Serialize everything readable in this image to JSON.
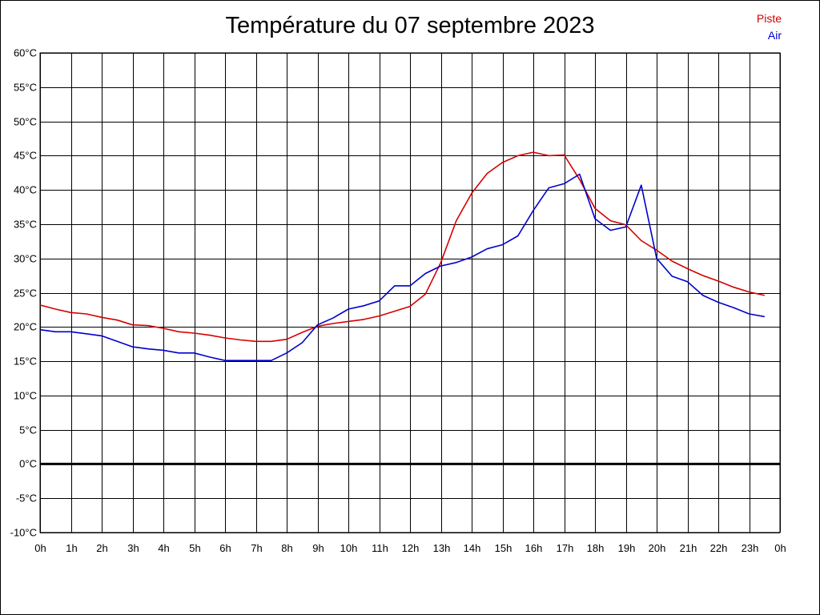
{
  "chart_data": {
    "type": "line",
    "title": "Température du 07 septembre 2023",
    "x_unit": "hour",
    "x_range": [
      0,
      24
    ],
    "x_ticks": [
      "0h",
      "1h",
      "2h",
      "3h",
      "4h",
      "5h",
      "6h",
      "7h",
      "8h",
      "9h",
      "10h",
      "11h",
      "12h",
      "13h",
      "14h",
      "15h",
      "16h",
      "17h",
      "18h",
      "19h",
      "20h",
      "21h",
      "22h",
      "23h",
      "0h"
    ],
    "y_range": [
      -10,
      60
    ],
    "y_ticks": [
      "60°C",
      "55°C",
      "50°C",
      "45°C",
      "40°C",
      "35°C",
      "30°C",
      "25°C",
      "20°C",
      "15°C",
      "10°C",
      "5°C",
      "0°C",
      "-5°C",
      "-10°C"
    ],
    "grid": true,
    "zero_line": true,
    "legend_position": "top-right",
    "series": [
      {
        "name": "Piste",
        "color": "#d40000",
        "points": [
          [
            0,
            23.2
          ],
          [
            0.5,
            22.6
          ],
          [
            1,
            22.1
          ],
          [
            1.5,
            21.9
          ],
          [
            2,
            21.4
          ],
          [
            2.5,
            21.0
          ],
          [
            3,
            20.3
          ],
          [
            3.5,
            20.2
          ],
          [
            4,
            19.8
          ],
          [
            4.5,
            19.3
          ],
          [
            5,
            19.1
          ],
          [
            5.5,
            18.8
          ],
          [
            6,
            18.4
          ],
          [
            6.5,
            18.1
          ],
          [
            7,
            17.9
          ],
          [
            7.5,
            17.9
          ],
          [
            8,
            18.2
          ],
          [
            8.5,
            19.2
          ],
          [
            9,
            20.1
          ],
          [
            9.5,
            20.5
          ],
          [
            10,
            20.8
          ],
          [
            10.5,
            21.1
          ],
          [
            11,
            21.6
          ],
          [
            11.5,
            22.3
          ],
          [
            12,
            23.0
          ],
          [
            12.5,
            24.8
          ],
          [
            13,
            29.4
          ],
          [
            13.5,
            35.5
          ],
          [
            14,
            39.5
          ],
          [
            14.5,
            42.4
          ],
          [
            15,
            44.0
          ],
          [
            15.5,
            45.0
          ],
          [
            16,
            45.5
          ],
          [
            16.5,
            45.0
          ],
          [
            17,
            45.1
          ],
          [
            17.5,
            41.5
          ],
          [
            18,
            37.3
          ],
          [
            18.5,
            35.5
          ],
          [
            19,
            34.9
          ],
          [
            19.5,
            32.6
          ],
          [
            20,
            31.2
          ],
          [
            20.5,
            29.6
          ],
          [
            21,
            28.5
          ],
          [
            21.5,
            27.5
          ],
          [
            22,
            26.7
          ],
          [
            22.5,
            25.8
          ],
          [
            23,
            25.1
          ],
          [
            23.5,
            24.6
          ]
        ]
      },
      {
        "name": "Air",
        "color": "#0000cc",
        "points": [
          [
            0,
            19.6
          ],
          [
            0.5,
            19.3
          ],
          [
            1,
            19.3
          ],
          [
            1.5,
            19.0
          ],
          [
            2,
            18.7
          ],
          [
            2.5,
            17.9
          ],
          [
            3,
            17.1
          ],
          [
            3.5,
            16.8
          ],
          [
            4,
            16.6
          ],
          [
            4.5,
            16.2
          ],
          [
            5,
            16.2
          ],
          [
            5.5,
            15.6
          ],
          [
            6,
            15.1
          ],
          [
            6.5,
            15.1
          ],
          [
            7,
            15.1
          ],
          [
            7.5,
            15.1
          ],
          [
            8,
            16.2
          ],
          [
            8.5,
            17.7
          ],
          [
            9,
            20.3
          ],
          [
            9.5,
            21.3
          ],
          [
            10,
            22.6
          ],
          [
            10.5,
            23.1
          ],
          [
            11,
            23.8
          ],
          [
            11.5,
            26.0
          ],
          [
            12,
            26.0
          ],
          [
            12.5,
            27.8
          ],
          [
            13,
            28.9
          ],
          [
            13.5,
            29.4
          ],
          [
            14,
            30.2
          ],
          [
            14.5,
            31.4
          ],
          [
            15,
            32.0
          ],
          [
            15.5,
            33.3
          ],
          [
            16,
            37.0
          ],
          [
            16.5,
            40.3
          ],
          [
            17,
            40.9
          ],
          [
            17.5,
            42.3
          ],
          [
            18,
            35.8
          ],
          [
            18.5,
            34.1
          ],
          [
            19,
            34.6
          ],
          [
            19.5,
            40.7
          ],
          [
            20,
            30.0
          ],
          [
            20.5,
            27.4
          ],
          [
            21,
            26.6
          ],
          [
            21.5,
            24.6
          ],
          [
            22,
            23.6
          ],
          [
            22.5,
            22.8
          ],
          [
            23,
            21.9
          ],
          [
            23.5,
            21.5
          ]
        ]
      }
    ]
  }
}
